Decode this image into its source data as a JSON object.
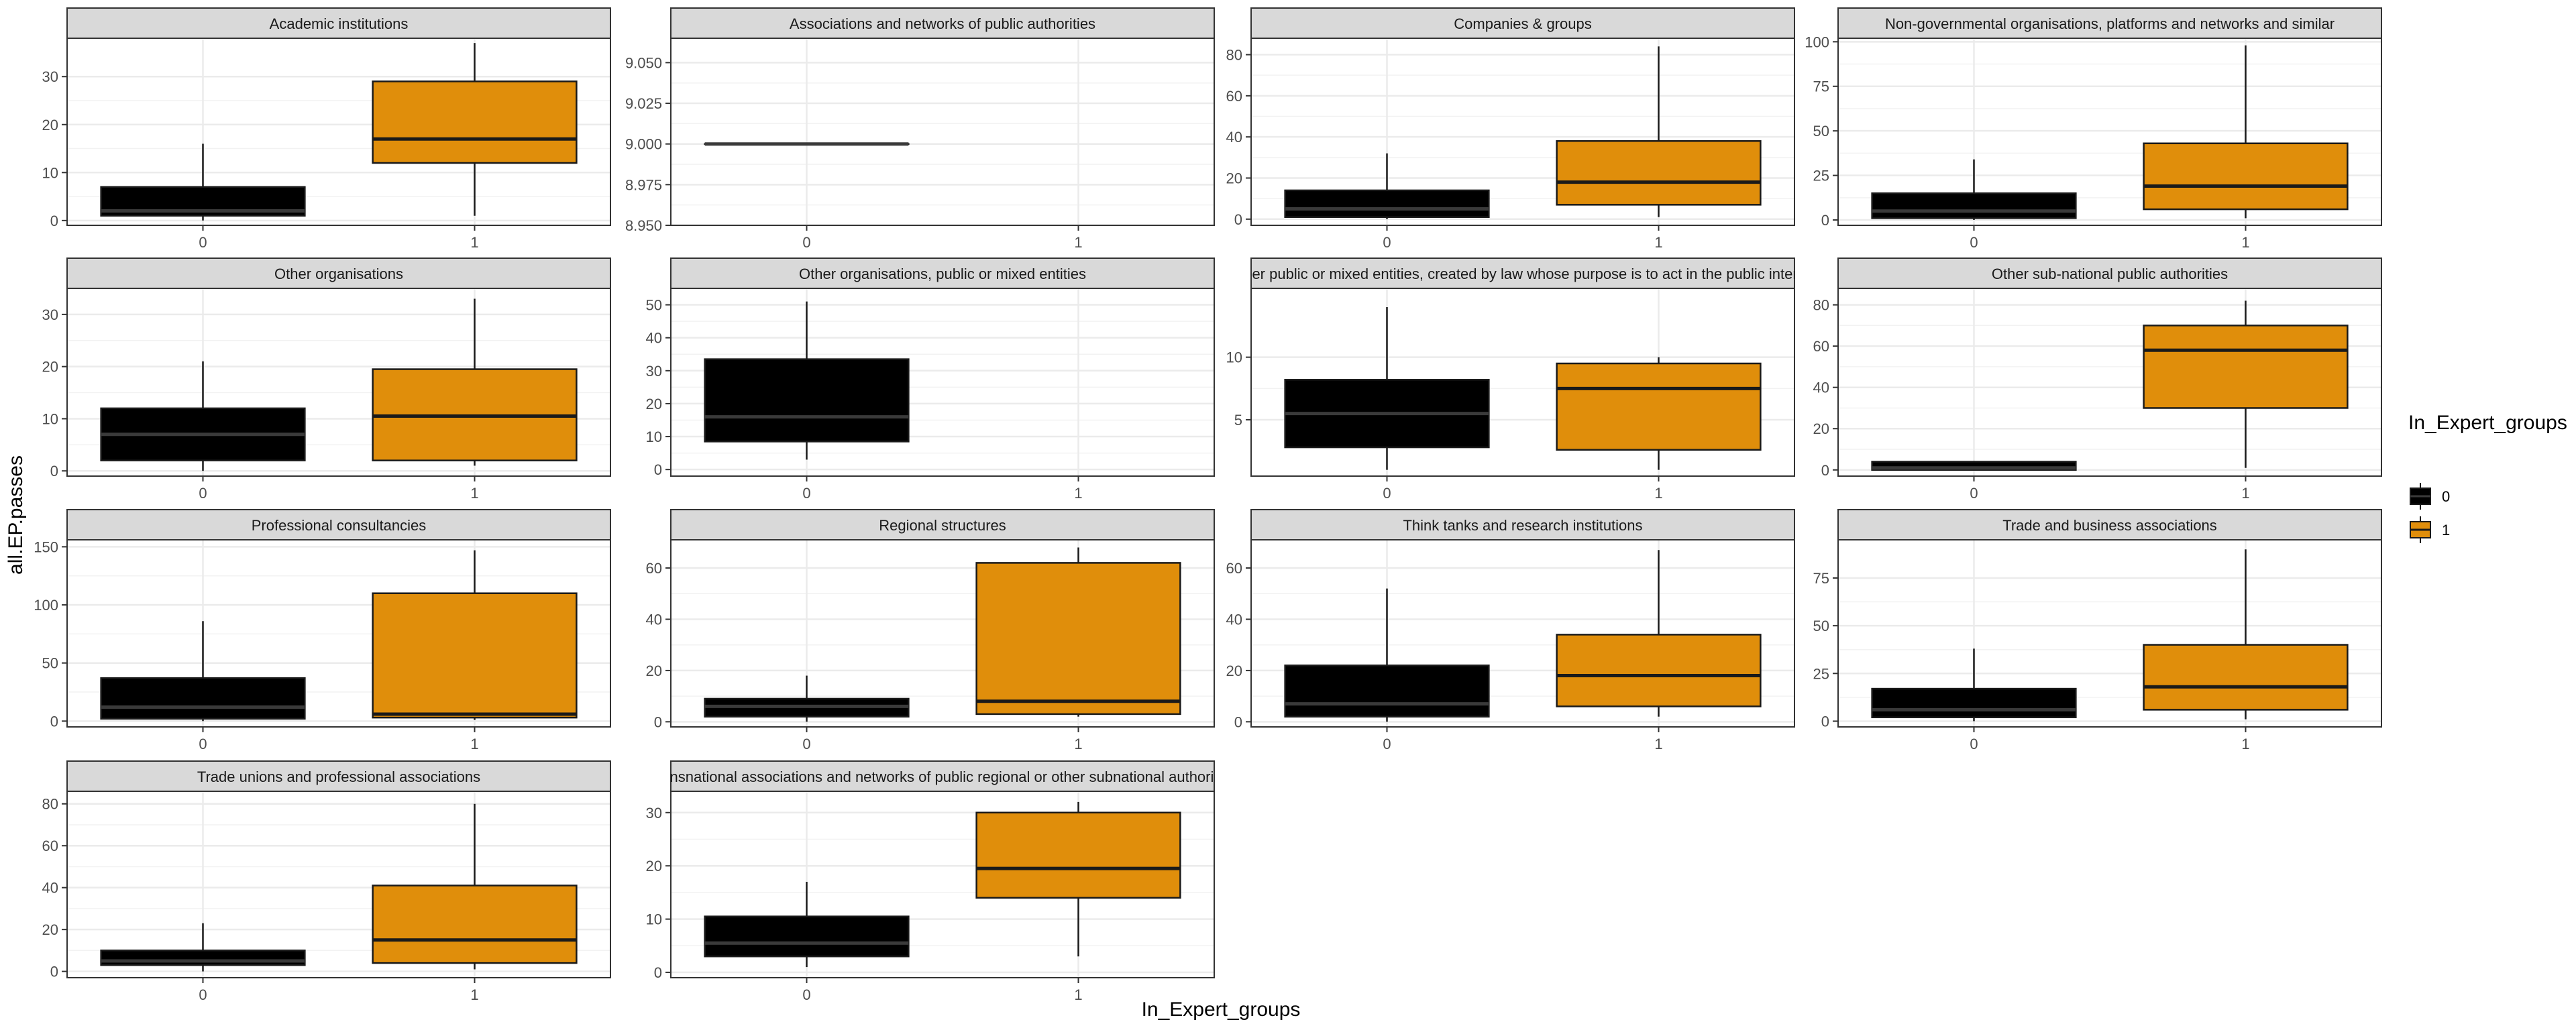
{
  "chart_data": {
    "type": "box",
    "xlabel": "In_Expert_groups",
    "ylabel": "all.EP.passes",
    "legend": {
      "title": "In_Expert_groups",
      "placement": "right",
      "entries": [
        {
          "label": "0",
          "color": "#000000"
        },
        {
          "label": "1",
          "color": "#E08E0B"
        }
      ]
    },
    "categories": [
      "0",
      "1"
    ],
    "grid": true,
    "panels": [
      {
        "title": "Academic institutions",
        "ylim": [
          -1,
          38
        ],
        "yticks": [
          0,
          10,
          20,
          30
        ],
        "ytick_labels": [
          "0",
          "10",
          "20",
          "30"
        ],
        "boxes": [
          {
            "group": "0",
            "min": 0,
            "q1": 1,
            "median": 2,
            "q3": 7,
            "max": 16
          },
          {
            "group": "1",
            "min": 1,
            "q1": 12,
            "median": 17,
            "q3": 29,
            "max": 37
          }
        ]
      },
      {
        "title": "Associations and networks of public authorities",
        "ylim": [
          8.95,
          9.065
        ],
        "yticks": [
          8.95,
          8.975,
          9.0,
          9.025,
          9.05
        ],
        "ytick_labels": [
          "8.950",
          "8.975",
          "9.000",
          "9.025",
          "9.050"
        ],
        "boxes": [
          {
            "group": "0",
            "min": 9,
            "q1": 9,
            "median": 9,
            "q3": 9,
            "max": 9
          }
        ]
      },
      {
        "title": "Companies & groups",
        "ylim": [
          -3,
          88
        ],
        "yticks": [
          0,
          20,
          40,
          60,
          80
        ],
        "ytick_labels": [
          "0",
          "20",
          "40",
          "60",
          "80"
        ],
        "boxes": [
          {
            "group": "0",
            "min": 0,
            "q1": 1,
            "median": 5,
            "q3": 14,
            "max": 32
          },
          {
            "group": "1",
            "min": 1,
            "q1": 7,
            "median": 18,
            "q3": 38,
            "max": 84
          }
        ]
      },
      {
        "title": "Non-governmental organisations, platforms and networks and similar",
        "ylim": [
          -3,
          102
        ],
        "yticks": [
          0,
          25,
          50,
          75,
          100
        ],
        "ytick_labels": [
          "0",
          "25",
          "50",
          "75",
          "100"
        ],
        "boxes": [
          {
            "group": "0",
            "min": 0,
            "q1": 1,
            "median": 5,
            "q3": 15,
            "max": 34
          },
          {
            "group": "1",
            "min": 1,
            "q1": 6,
            "median": 19,
            "q3": 43,
            "max": 98
          }
        ]
      },
      {
        "title": "Other organisations",
        "ylim": [
          -1,
          35
        ],
        "yticks": [
          0,
          10,
          20,
          30
        ],
        "ytick_labels": [
          "0",
          "10",
          "20",
          "30"
        ],
        "boxes": [
          {
            "group": "0",
            "min": 0,
            "q1": 2,
            "median": 7,
            "q3": 12,
            "max": 21
          },
          {
            "group": "1",
            "min": 1,
            "q1": 2,
            "median": 10.5,
            "q3": 19.5,
            "max": 33
          }
        ]
      },
      {
        "title": "Other organisations, public or mixed entities",
        "ylim": [
          -2,
          55
        ],
        "yticks": [
          0,
          10,
          20,
          30,
          40,
          50
        ],
        "ytick_labels": [
          "0",
          "10",
          "20",
          "30",
          "40",
          "50"
        ],
        "boxes": [
          {
            "group": "0",
            "min": 3,
            "q1": 8.5,
            "median": 16,
            "q3": 33.5,
            "max": 51
          }
        ]
      },
      {
        "title": "Other public or mixed entities, created by law whose purpose is to act in the public interest",
        "ylim": [
          0.5,
          15.5
        ],
        "yticks": [
          5,
          10
        ],
        "ytick_labels": [
          "5",
          "10"
        ],
        "boxes": [
          {
            "group": "0",
            "min": 1,
            "q1": 2.8,
            "median": 5.5,
            "q3": 8.2,
            "max": 14
          },
          {
            "group": "1",
            "min": 1,
            "q1": 2.6,
            "median": 7.5,
            "q3": 9.5,
            "max": 10
          }
        ]
      },
      {
        "title": "Other sub-national public authorities",
        "ylim": [
          -3,
          88
        ],
        "yticks": [
          0,
          20,
          40,
          60,
          80
        ],
        "ytick_labels": [
          "0",
          "20",
          "40",
          "60",
          "80"
        ],
        "boxes": [
          {
            "group": "0",
            "min": 0,
            "q1": 0,
            "median": 1,
            "q3": 4,
            "max": 4
          },
          {
            "group": "1",
            "min": 1,
            "q1": 30,
            "median": 58,
            "q3": 70,
            "max": 82
          }
        ]
      },
      {
        "title": "Professional consultancies",
        "ylim": [
          -5,
          156
        ],
        "yticks": [
          0,
          50,
          100,
          150
        ],
        "ytick_labels": [
          "0",
          "50",
          "100",
          "150"
        ],
        "boxes": [
          {
            "group": "0",
            "min": 0,
            "q1": 2,
            "median": 12,
            "q3": 37,
            "max": 86
          },
          {
            "group": "1",
            "min": 1,
            "q1": 3,
            "median": 6,
            "q3": 110,
            "max": 147
          }
        ]
      },
      {
        "title": "Regional structures",
        "ylim": [
          -2,
          71
        ],
        "yticks": [
          0,
          20,
          40,
          60
        ],
        "ytick_labels": [
          "0",
          "20",
          "40",
          "60"
        ],
        "boxes": [
          {
            "group": "0",
            "min": 0,
            "q1": 2,
            "median": 6,
            "q3": 9,
            "max": 18
          },
          {
            "group": "1",
            "min": 2,
            "q1": 3,
            "median": 8,
            "q3": 62,
            "max": 68
          }
        ]
      },
      {
        "title": "Think tanks and research institutions",
        "ylim": [
          -2,
          71
        ],
        "yticks": [
          0,
          20,
          40,
          60
        ],
        "ytick_labels": [
          "0",
          "20",
          "40",
          "60"
        ],
        "boxes": [
          {
            "group": "0",
            "min": 0,
            "q1": 2,
            "median": 7,
            "q3": 22,
            "max": 52
          },
          {
            "group": "1",
            "min": 2,
            "q1": 6,
            "median": 18,
            "q3": 34,
            "max": 67
          }
        ]
      },
      {
        "title": "Trade and business associations",
        "ylim": [
          -3,
          95
        ],
        "yticks": [
          0,
          25,
          50,
          75
        ],
        "ytick_labels": [
          "0",
          "25",
          "50",
          "75"
        ],
        "boxes": [
          {
            "group": "0",
            "min": 0,
            "q1": 2,
            "median": 6,
            "q3": 17,
            "max": 38
          },
          {
            "group": "1",
            "min": 1,
            "q1": 6,
            "median": 18,
            "q3": 40,
            "max": 90
          }
        ]
      },
      {
        "title": "Trade unions and professional associations",
        "ylim": [
          -3,
          86
        ],
        "yticks": [
          0,
          20,
          40,
          60,
          80
        ],
        "ytick_labels": [
          "0",
          "20",
          "40",
          "60",
          "80"
        ],
        "boxes": [
          {
            "group": "0",
            "min": 0,
            "q1": 3,
            "median": 5,
            "q3": 10,
            "max": 23
          },
          {
            "group": "1",
            "min": 1,
            "q1": 4,
            "median": 15,
            "q3": 41,
            "max": 80
          }
        ]
      },
      {
        "title": "Transnational associations and networks of public regional or other subnational authorities",
        "ylim": [
          -1,
          34
        ],
        "yticks": [
          0,
          10,
          20,
          30
        ],
        "ytick_labels": [
          "0",
          "10",
          "20",
          "30"
        ],
        "boxes": [
          {
            "group": "0",
            "min": 1,
            "q1": 3,
            "median": 5.5,
            "q3": 10.5,
            "max": 17
          },
          {
            "group": "1",
            "min": 3,
            "q1": 14,
            "median": 19.5,
            "q3": 30,
            "max": 32
          }
        ]
      }
    ]
  }
}
